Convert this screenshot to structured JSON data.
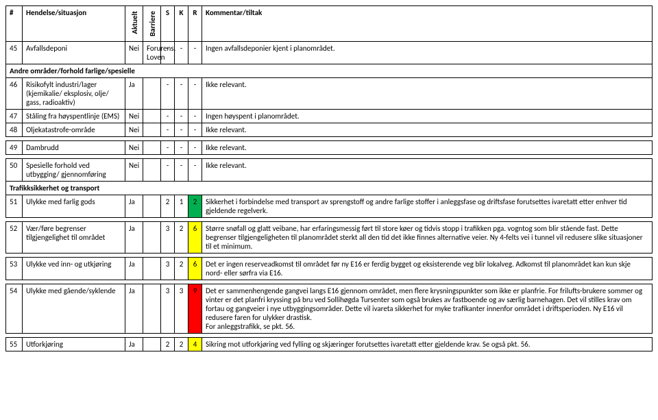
{
  "headers": {
    "num": "#",
    "hendelse": "Hendelse/situasjon",
    "aktuelt": "Aktuelt",
    "barriere": "Barriere",
    "s": "S",
    "k": "K",
    "r": "R",
    "kommentar": "Kommentar/tiltak"
  },
  "rows": [
    {
      "type": "data",
      "num": "45",
      "hend": "Avfallsdeponi",
      "akt": "Nei",
      "barr": "Forurens. Loven",
      "s": "-",
      "k": "-",
      "r": "-",
      "rcolor": "",
      "komm": "Ingen avfallsdeponier kjent i planområdet."
    },
    {
      "type": "section",
      "label": "Andre områder/forhold farlige/spesielle"
    },
    {
      "type": "data",
      "num": "46",
      "hend": "Risikofylt industri/lager (kjemikalie/ eksplosiv, olje/ gass, radioaktiv)",
      "akt": "Ja",
      "barr": "",
      "s": "-",
      "k": "-",
      "r": "-",
      "rcolor": "",
      "komm": "Ikke relevant."
    },
    {
      "type": "data",
      "num": "47",
      "hend": "Ståling fra høyspentlinje (EMS)",
      "akt": "Nei",
      "barr": "",
      "s": "-",
      "k": "-",
      "r": "-",
      "rcolor": "",
      "komm": "Ingen høyspent i planområdet."
    },
    {
      "type": "data",
      "num": "48",
      "hend": "Oljekatastrofe-område",
      "akt": "Nei",
      "barr": "",
      "s": "-",
      "k": "-",
      "r": "-",
      "rcolor": "",
      "komm": "Ikke relevant."
    },
    {
      "type": "spacer"
    },
    {
      "type": "data",
      "num": "49",
      "hend": "Dambrudd",
      "akt": "Nei",
      "barr": "",
      "s": "-",
      "k": "-",
      "r": "-",
      "rcolor": "",
      "komm": "Ikke relevant."
    },
    {
      "type": "spacer"
    },
    {
      "type": "data",
      "num": "50",
      "hend": "Spesielle forhold ved utbygging/ gjennomføring",
      "akt": "Nei",
      "barr": "",
      "s": "-",
      "k": "-",
      "r": "-",
      "rcolor": "",
      "komm": "Ikke relevant."
    },
    {
      "type": "section",
      "label": "Trafikksikkerhet og transport"
    },
    {
      "type": "data",
      "num": "51",
      "hend": "Ulykke med farlig gods",
      "akt": "Ja",
      "barr": "",
      "s": "2",
      "k": "1",
      "r": "2",
      "rcolor": "green",
      "komm": "Sikkerhet i forbindelse med transport av sprengstoff og andre farlige stoffer i anleggsfase og driftsfase forutsettes ivaretatt etter enhver tid gjeldende regelverk."
    },
    {
      "type": "spacer"
    },
    {
      "type": "data",
      "num": "52",
      "hend": "Vær/føre begrenser tilgjengelighet til området",
      "akt": "Ja",
      "barr": "",
      "s": "3",
      "k": "2",
      "r": "6",
      "rcolor": "yellow",
      "komm": "Større snøfall og glatt veibane, har erfaringsmessig ført til store køer og tidvis stopp i trafikken pga. vogntog som blir stående fast. Dette begrenser tilgjengeligheten til planområdet sterkt all den tid det ikke finnes alternative veier. Ny 4-felts vei i tunnel vil redusere slike situasjoner til et minimum."
    },
    {
      "type": "spacer"
    },
    {
      "type": "data",
      "num": "53",
      "hend": "Ulykke ved inn- og utkjøring",
      "akt": "Ja",
      "barr": "",
      "s": "3",
      "k": "2",
      "r": "6",
      "rcolor": "yellow",
      "komm": "Det er ingen reserveadkomst til området før ny E16 er ferdig bygget og eksisterende veg blir lokalveg. Adkomst til planområdet kan kun skje nord- eller sørfra via E16."
    },
    {
      "type": "spacer"
    },
    {
      "type": "data",
      "num": "54",
      "hend": "Ulykke med gående/syklende",
      "akt": "Ja",
      "barr": "",
      "s": "3",
      "k": "3",
      "r": "9",
      "rcolor": "red",
      "komm": "Det er sammenhengende gangvei langs E16 gjennom området, men flere krysningspunkter som ikke er planfrie. For frilufts-brukere sommer og vinter er det planfri kryssing på bru ved Sollihøgda Tursenter som også brukes av fastboende og av særlig barnehagen. Det vil stilles krav om fortau og gangveier i nye utbyggingsområder. Dette vil ivareta sikkerhet for myke trafikanter innenfor området i driftsperioden. Ny E16 vil redusere faren for ulykker drastisk.\nFor anleggstrafikk, se pkt. 56."
    },
    {
      "type": "spacer"
    },
    {
      "type": "data",
      "num": "55",
      "hend": "Utforkjøring",
      "akt": "Ja",
      "barr": "",
      "s": "2",
      "k": "2",
      "r": "4",
      "rcolor": "yellow",
      "komm": "Sikring mot utforkjøring ved fylling og skjæringer forutsettes ivaretatt etter gjeldende krav. Se også pkt. 56."
    }
  ],
  "colors": {
    "green": "#00b050",
    "yellow": "#ffff00",
    "red": "#ff0000"
  }
}
